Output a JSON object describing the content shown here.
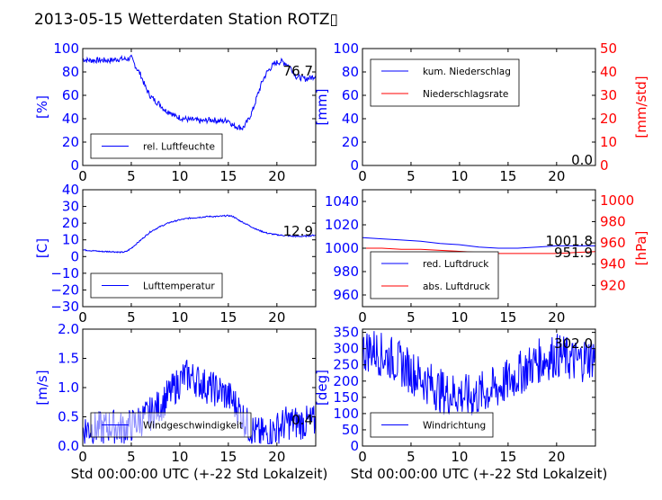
{
  "title": "2013-05-15 Wetterdaten Station ROTZ▯",
  "colors": {
    "blue": "#0000ff",
    "red": "#ff0000",
    "black": "#000000"
  },
  "chart_data": [
    {
      "id": "humidity",
      "type": "line",
      "xlim": [
        0,
        24
      ],
      "ylim": [
        0,
        100
      ],
      "xticks": [
        "0",
        "5",
        "10",
        "15",
        "20"
      ],
      "yticks": [
        "0",
        "20",
        "40",
        "60",
        "80",
        "100"
      ],
      "ylabel": "[%]",
      "xlabel": "",
      "last_value": "76.7",
      "legend": [
        {
          "label": "rel. Luftfeuchte",
          "color": "#0000ff"
        }
      ],
      "legend_loc": "lower-left",
      "series": [
        {
          "name": "rel. Luftfeuchte",
          "color": "#0000ff",
          "x": [
            0,
            0.5,
            1,
            1.5,
            2,
            2.5,
            3,
            3.5,
            4,
            4.5,
            5,
            5.5,
            6,
            6.5,
            7,
            7.5,
            8,
            8.5,
            9,
            9.5,
            10,
            10.5,
            11,
            11.5,
            12,
            12.5,
            13,
            13.5,
            14,
            14.5,
            15,
            15.5,
            16,
            16.5,
            17,
            17.5,
            18,
            18.5,
            19,
            19.5,
            20,
            20.5,
            21,
            21.5,
            22,
            22.5,
            23,
            23.5,
            24
          ],
          "y": [
            91,
            90,
            90,
            90,
            90,
            90,
            90,
            91,
            91,
            91,
            92,
            84,
            77,
            66,
            59,
            55,
            52,
            47,
            46,
            42,
            41,
            40,
            39,
            39,
            38,
            38,
            39,
            39,
            38,
            38,
            39,
            34,
            33,
            32,
            38,
            47,
            60,
            72,
            80,
            85,
            88,
            89,
            87,
            83,
            76,
            75,
            74,
            75,
            77
          ],
          "noise": 2.5
        }
      ]
    },
    {
      "id": "rain",
      "type": "line",
      "xlim": [
        0,
        24
      ],
      "ylim": [
        0,
        100
      ],
      "y2lim": [
        0,
        50
      ],
      "xticks": [
        "0",
        "5",
        "10",
        "15",
        "20"
      ],
      "yticks": [
        "0",
        "20",
        "40",
        "60",
        "80",
        "100"
      ],
      "y2ticks": [
        "0",
        "10",
        "20",
        "30",
        "40",
        "50"
      ],
      "ylabel": "[mm]",
      "y2label": "[mm/std]",
      "last_value": "0.0",
      "legend": [
        {
          "label": "kum. Niederschlag",
          "color": "#0000ff"
        },
        {
          "label": "Niederschlagsrate",
          "color": "#ff0000"
        }
      ],
      "legend_loc": "upper-left",
      "series": [
        {
          "name": "kum. Niederschlag",
          "color": "#0000ff",
          "x": [
            0,
            24
          ],
          "y": [
            0,
            0
          ]
        },
        {
          "name": "Niederschlagsrate",
          "color": "#ff0000",
          "axis": "right",
          "x": [
            0,
            24
          ],
          "y": [
            0,
            0
          ]
        }
      ]
    },
    {
      "id": "temperature",
      "type": "line",
      "xlim": [
        0,
        24
      ],
      "ylim": [
        -30,
        40
      ],
      "xticks": [
        "0",
        "5",
        "10",
        "15",
        "20"
      ],
      "yticks": [
        "−30",
        "−20",
        "−10",
        "0",
        "10",
        "20",
        "30",
        "40"
      ],
      "ylabel": "[C]",
      "last_value": "12.9",
      "legend": [
        {
          "label": "Lufttemperatur",
          "color": "#0000ff"
        }
      ],
      "legend_loc": "lower-left",
      "series": [
        {
          "name": "Lufttemperatur",
          "color": "#0000ff",
          "x": [
            0,
            1,
            2,
            3,
            4,
            4.5,
            5,
            6,
            7,
            8,
            9,
            10,
            11,
            12,
            13,
            14,
            15,
            15.5,
            16,
            17,
            18,
            19,
            20,
            21,
            22,
            23,
            24
          ],
          "y": [
            4,
            3.5,
            3,
            3,
            2.5,
            3,
            5,
            10,
            15,
            18,
            20.5,
            22,
            23,
            23.5,
            24,
            24,
            24.5,
            24,
            22,
            19,
            16,
            14,
            13,
            12.5,
            12,
            12.2,
            12.9
          ],
          "noise": 0.4
        }
      ]
    },
    {
      "id": "pressure",
      "type": "line",
      "xlim": [
        0,
        24
      ],
      "ylim": [
        950,
        1050
      ],
      "y2lim": [
        900,
        1010
      ],
      "xticks": [
        "0",
        "5",
        "10",
        "15",
        "20"
      ],
      "yticks": [
        "960",
        "980",
        "1000",
        "1020",
        "1040"
      ],
      "y2ticks": [
        "920",
        "940",
        "960",
        "980",
        "1000"
      ],
      "y2label": "[hPa]",
      "last_values": [
        "1001.8",
        "951.9"
      ],
      "legend": [
        {
          "label": "red. Luftdruck",
          "color": "#0000ff"
        },
        {
          "label": "abs. Luftdruck",
          "color": "#ff0000"
        }
      ],
      "legend_loc": "lower-left",
      "series": [
        {
          "name": "red. Luftdruck",
          "color": "#0000ff",
          "x": [
            0,
            2,
            4,
            6,
            8,
            10,
            12,
            14,
            16,
            18,
            20,
            22,
            24
          ],
          "y": [
            1009,
            1008,
            1007,
            1006,
            1004,
            1003,
            1001,
            1000,
            1000,
            1001,
            1002,
            1002,
            1002
          ]
        },
        {
          "name": "abs. Luftdruck",
          "color": "#ff0000",
          "axis": "right",
          "x": [
            0,
            2,
            4,
            6,
            8,
            10,
            12,
            14,
            16,
            18,
            20,
            22,
            24
          ],
          "y": [
            955,
            955,
            954,
            954,
            953,
            952,
            951,
            950,
            950,
            950,
            950,
            951,
            951.9
          ]
        }
      ]
    },
    {
      "id": "windspeed",
      "type": "line",
      "xlim": [
        0,
        24
      ],
      "ylim": [
        0,
        2.0
      ],
      "xticks": [
        "0",
        "5",
        "10",
        "15",
        "20"
      ],
      "yticks": [
        "0.0",
        "0.5",
        "1.0",
        "1.5",
        "2.0"
      ],
      "ylabel": "[m/s]",
      "xlabel": "Std 00:00:00 UTC (+-22 Std Lokalzeit)",
      "last_value": "0.4",
      "legend": [
        {
          "label": "Windgeschwindigkeit",
          "color": "#0000ff"
        }
      ],
      "legend_loc": "lower-left",
      "series": [
        {
          "name": "Windgeschwindigkeit",
          "color": "#0000ff",
          "x": [
            0,
            1,
            2,
            3,
            4,
            5,
            6,
            7,
            8,
            9,
            10,
            10.5,
            11,
            12,
            13,
            14,
            15,
            16,
            17,
            18,
            19,
            20,
            21,
            22,
            23,
            24
          ],
          "y": [
            0.3,
            0.3,
            0.3,
            0.35,
            0.3,
            0.35,
            0.45,
            0.55,
            0.7,
            0.9,
            1.1,
            1.2,
            1.2,
            1.1,
            1.0,
            0.95,
            0.85,
            0.65,
            0.35,
            0.2,
            0.2,
            0.3,
            0.4,
            0.4,
            0.4,
            0.4
          ],
          "noise": 0.3
        }
      ]
    },
    {
      "id": "winddir",
      "type": "line",
      "xlim": [
        0,
        24
      ],
      "ylim": [
        0,
        360
      ],
      "xticks": [
        "0",
        "5",
        "10",
        "15",
        "20"
      ],
      "yticks": [
        "0",
        "50",
        "100",
        "150",
        "200",
        "250",
        "300",
        "350"
      ],
      "ylabel": "[deg]",
      "xlabel": "Std 00:00:00 UTC (+-22 Std Lokalzeit)",
      "last_value": "302.0",
      "legend": [
        {
          "label": "Windrichtung",
          "color": "#0000ff"
        }
      ],
      "legend_loc": "lower-left",
      "series": [
        {
          "name": "Windrichtung",
          "color": "#0000ff",
          "x": [
            0,
            1,
            2,
            3,
            4,
            5,
            6,
            7,
            8,
            9,
            10,
            11,
            12,
            13,
            14,
            15,
            16,
            17,
            18,
            19,
            20,
            21,
            22,
            23,
            24
          ],
          "y": [
            290,
            300,
            280,
            270,
            250,
            230,
            210,
            190,
            170,
            160,
            160,
            150,
            160,
            170,
            180,
            200,
            220,
            240,
            260,
            270,
            280,
            270,
            260,
            270,
            280
          ],
          "noise": 70
        }
      ]
    }
  ]
}
